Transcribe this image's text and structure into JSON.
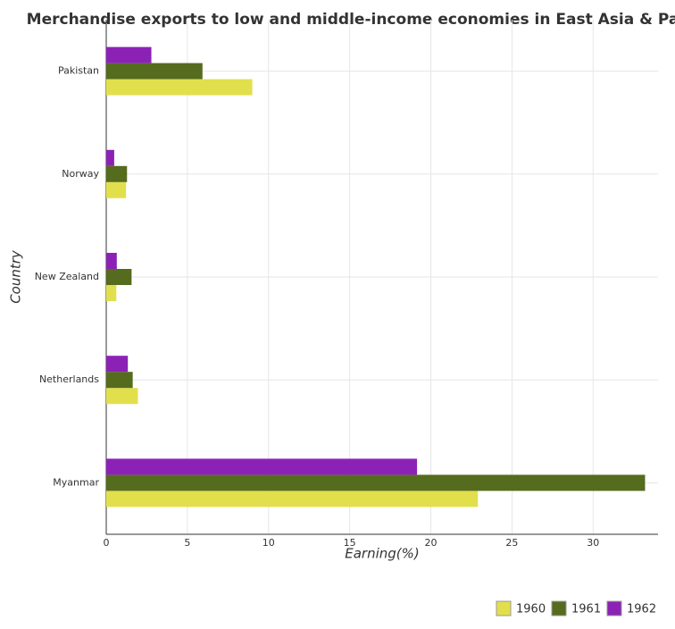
{
  "chart_data": {
    "type": "barh",
    "title": "Merchandise exports to low and middle-income economies in East Asia & Pa",
    "xlabel": "Earning(%)",
    "ylabel": "Country",
    "categories": [
      "Myanmar",
      "Netherlands",
      "New Zealand",
      "Norway",
      "Pakistan"
    ],
    "series": [
      {
        "name": "1960",
        "color": "#e2df4c",
        "values": [
          22.9,
          1.95,
          0.62,
          1.22,
          9.0
        ]
      },
      {
        "name": "1961",
        "color": "#556b1e",
        "values": [
          33.2,
          1.63,
          1.56,
          1.28,
          5.93
        ]
      },
      {
        "name": "1962",
        "color": "#8b22b5",
        "values": [
          19.15,
          1.33,
          0.65,
          0.49,
          2.78
        ]
      }
    ],
    "xlim": [
      0,
      34
    ],
    "xticks": [
      0,
      5,
      10,
      15,
      20,
      25,
      30
    ],
    "grid": true,
    "legend": "bottom-right"
  }
}
